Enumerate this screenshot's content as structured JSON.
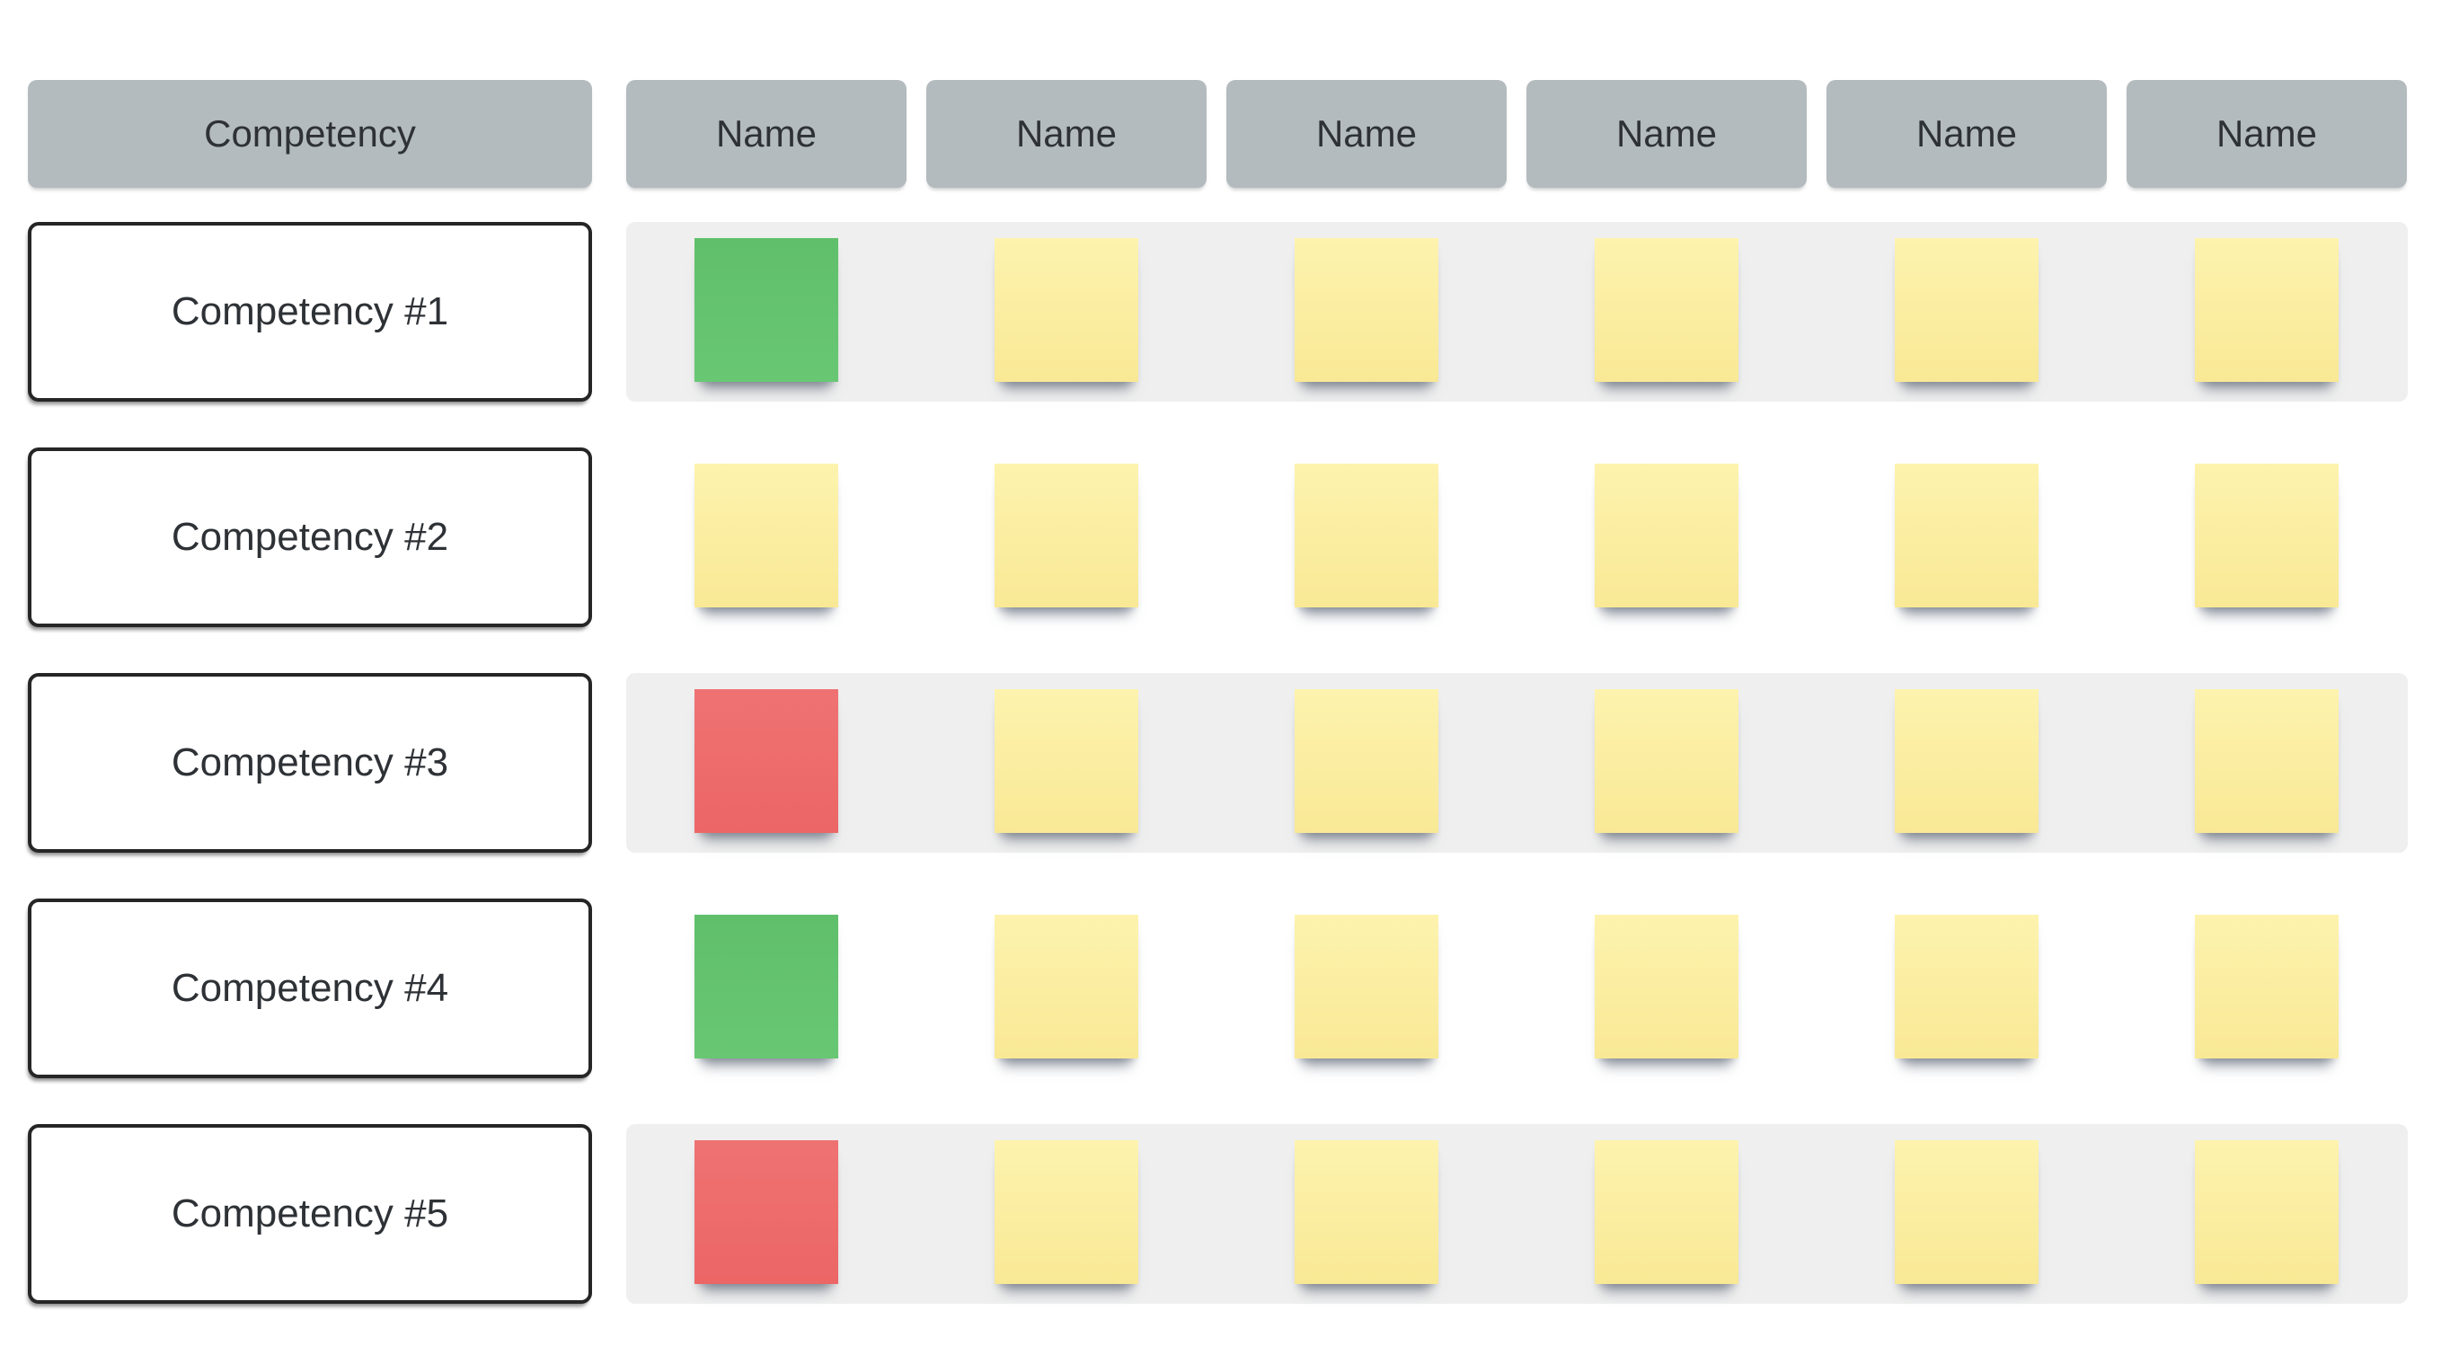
{
  "headers": {
    "competency_label": "Competency",
    "name_labels": [
      "Name",
      "Name",
      "Name",
      "Name",
      "Name",
      "Name"
    ]
  },
  "rows": [
    {
      "competency": "Competency #1",
      "striped": true,
      "stickies": [
        "green",
        "yellow",
        "yellow",
        "yellow",
        "yellow",
        "yellow"
      ]
    },
    {
      "competency": "Competency #2",
      "striped": false,
      "stickies": [
        "yellow",
        "yellow",
        "yellow",
        "yellow",
        "yellow",
        "yellow"
      ]
    },
    {
      "competency": "Competency #3",
      "striped": true,
      "stickies": [
        "red",
        "yellow",
        "yellow",
        "yellow",
        "yellow",
        "yellow"
      ]
    },
    {
      "competency": "Competency #4",
      "striped": false,
      "stickies": [
        "green",
        "yellow",
        "yellow",
        "yellow",
        "yellow",
        "yellow"
      ]
    },
    {
      "competency": "Competency #5",
      "striped": true,
      "stickies": [
        "red",
        "yellow",
        "yellow",
        "yellow",
        "yellow",
        "yellow"
      ]
    }
  ],
  "colors": {
    "sticky": {
      "green": {
        "top": "#60bf6a",
        "bottom": "#68c773"
      },
      "yellow": {
        "top": "#fdf3ae",
        "bottom": "#f9e995"
      },
      "red": {
        "top": "#ef7272",
        "bottom": "#ec6666"
      }
    },
    "header_bg": "#b4bbbe",
    "row_stripe_bg": "#efefef",
    "shape_border": "#262626",
    "text": "#2e3236"
  }
}
